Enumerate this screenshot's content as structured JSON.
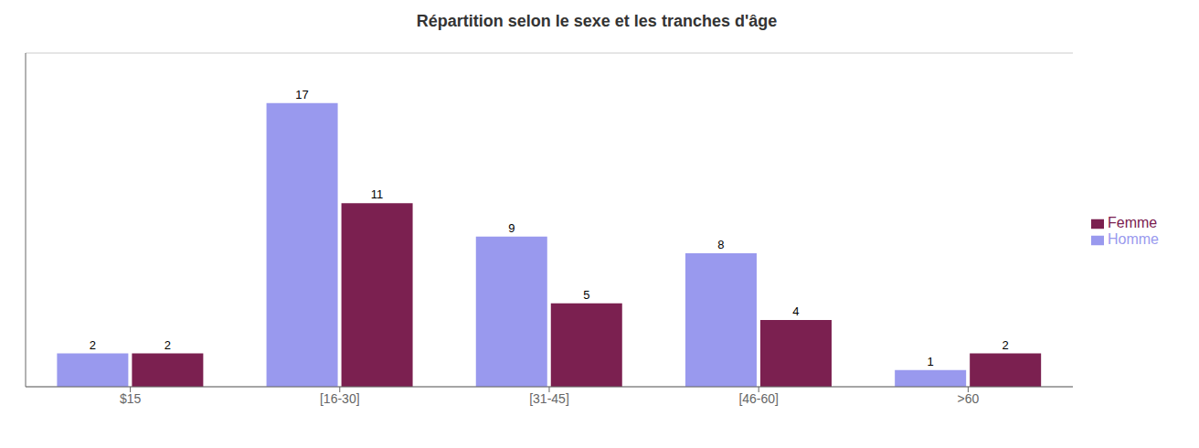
{
  "chart_data": {
    "type": "bar",
    "title": "Répartition selon le sexe et les tranches d'âge",
    "categories": [
      "$15",
      "[16-30]",
      "[31-45]",
      "[46-60]",
      ">60"
    ],
    "series": [
      {
        "name": "Homme",
        "color": "#9999ee",
        "values": [
          2,
          17,
          9,
          8,
          1
        ]
      },
      {
        "name": "Femme",
        "color": "#7b2050",
        "values": [
          2,
          11,
          5,
          4,
          2
        ]
      }
    ],
    "ylim": [
      0,
      20
    ],
    "yticks": [
      0,
      1,
      2,
      3,
      4,
      5,
      6,
      7,
      8,
      9,
      10,
      11,
      12,
      13,
      14,
      15,
      16,
      17,
      18,
      19,
      20
    ],
    "grid": true,
    "legend": "right",
    "data_labels": true,
    "tick_labels": "x"
  }
}
